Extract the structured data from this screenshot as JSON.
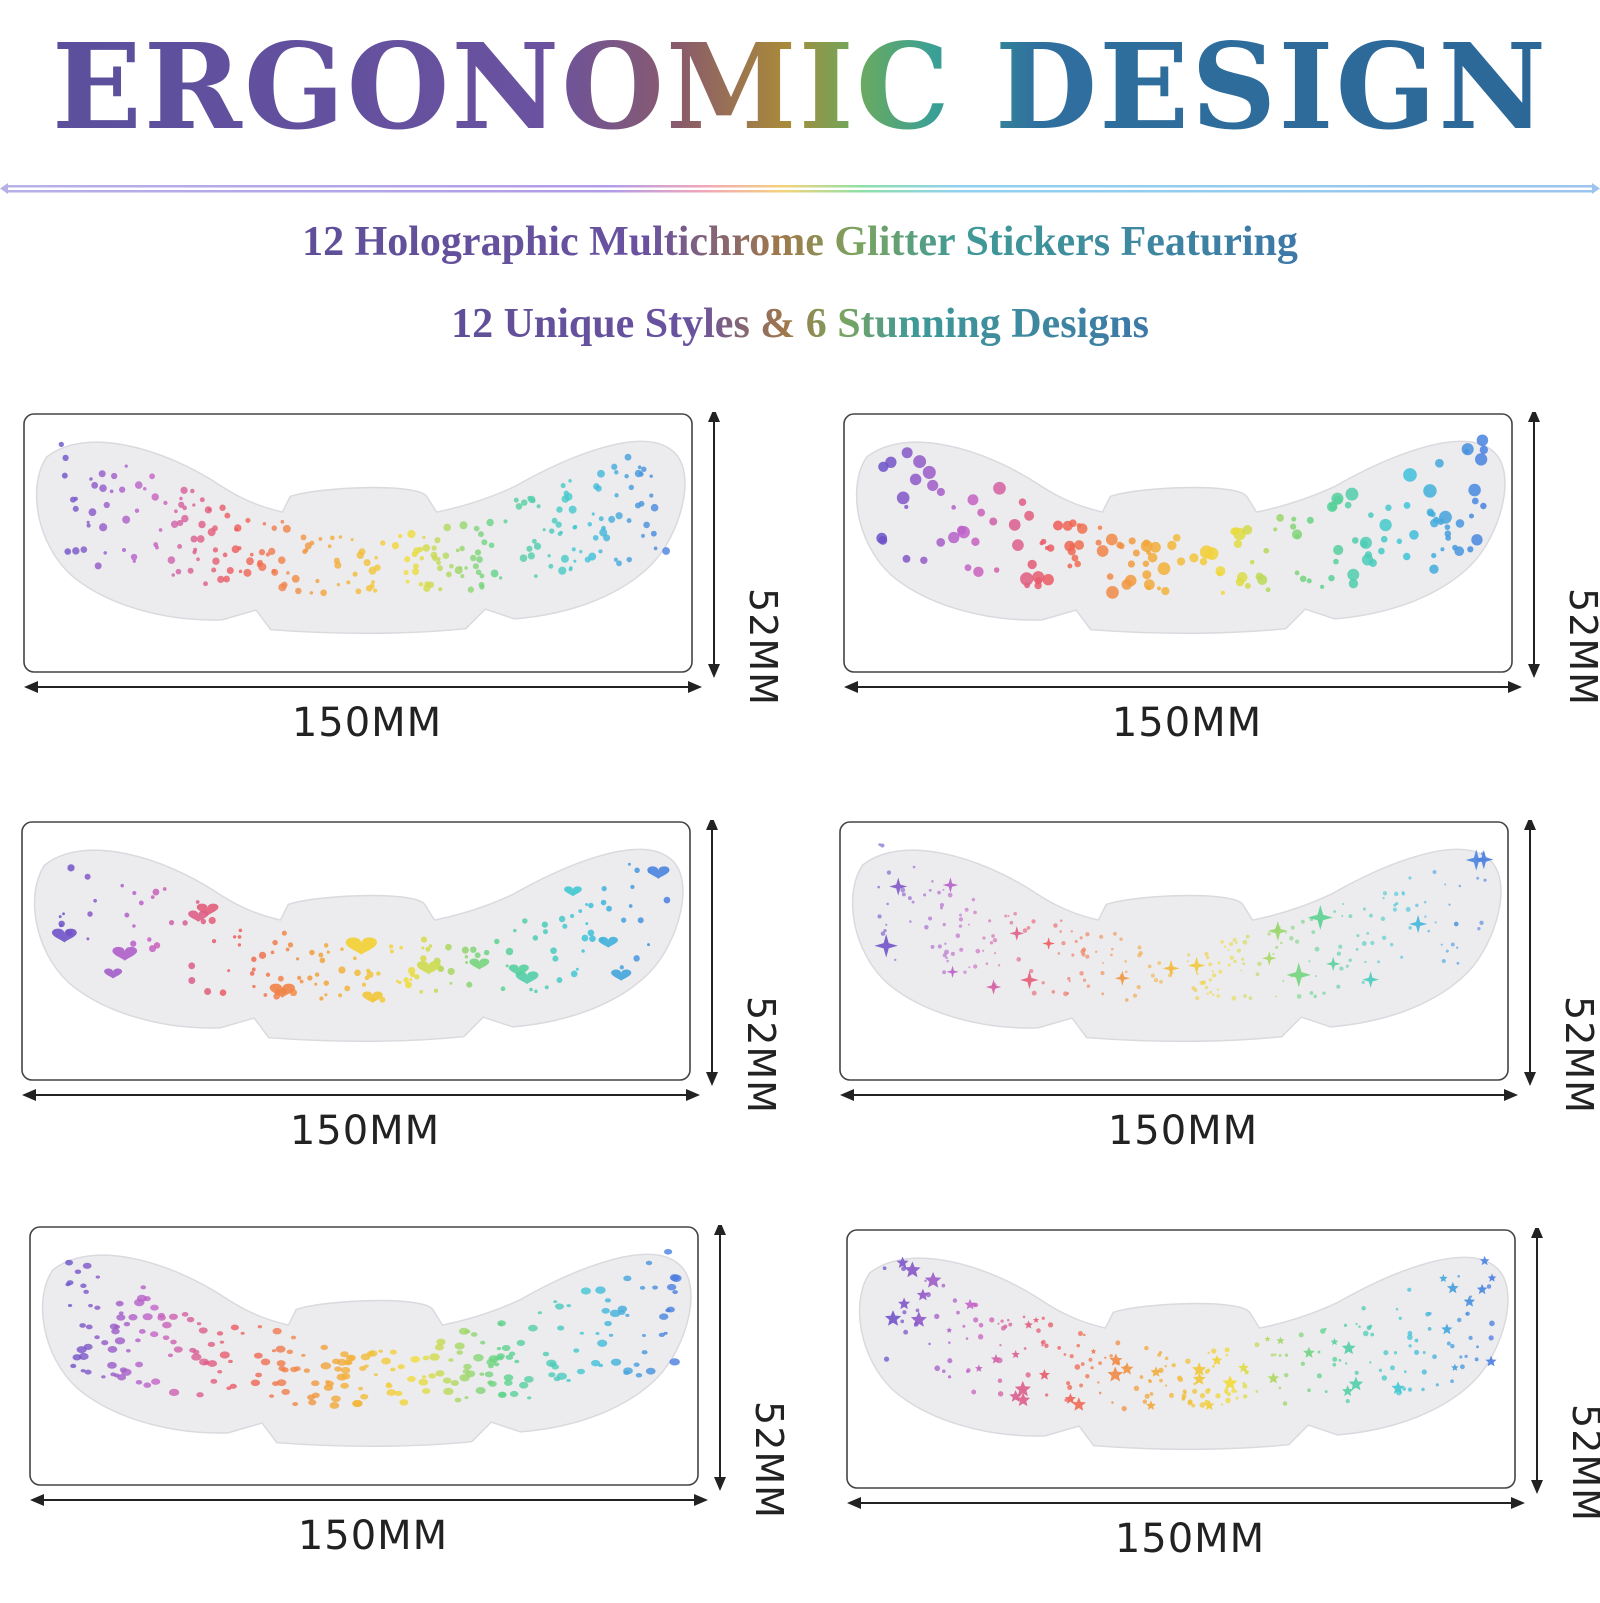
{
  "header": {
    "title": "ERGONOMIC DESIGN",
    "subtitle_line1": "12 Holographic Multichrome Glitter Stickers Featuring",
    "subtitle_line2": "12 Unique Styles & 6 Stunning Designs"
  },
  "stickers": [
    {
      "pattern": "dots",
      "width_label": "150MM",
      "height_label": "52MM"
    },
    {
      "pattern": "big-dots",
      "width_label": "150MM",
      "height_label": "52MM"
    },
    {
      "pattern": "hearts",
      "width_label": "150MM",
      "height_label": "52MM"
    },
    {
      "pattern": "sparkles",
      "width_label": "150MM",
      "height_label": "52MM"
    },
    {
      "pattern": "flakes",
      "width_label": "150MM",
      "height_label": "52MM"
    },
    {
      "pattern": "stars",
      "width_label": "150MM",
      "height_label": "52MM"
    }
  ],
  "colors": {
    "rainbow": [
      "#6a52c8",
      "#c463c8",
      "#ef5a5a",
      "#f2a43a",
      "#f2dd3a",
      "#5fd38a",
      "#3fc7d8",
      "#4a7be0"
    ]
  }
}
